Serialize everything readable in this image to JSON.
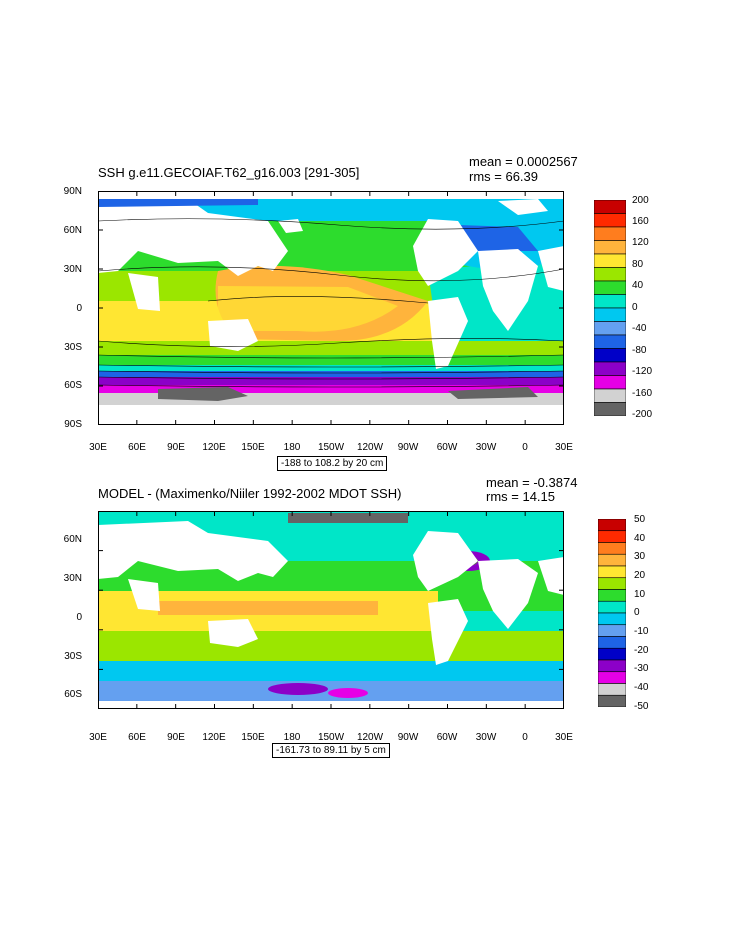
{
  "panel_top": {
    "title": "SSH g.e11.GECOIAF.T62_g16.003 [291-305]",
    "mean": "mean = 0.0002567",
    "rms": "rms = 66.39",
    "lat_labels": [
      "90N",
      "60N",
      "30N",
      "0",
      "30S",
      "60S",
      "90S"
    ],
    "lon_labels": [
      "30E",
      "60E",
      "90E",
      "120E",
      "150E",
      "180",
      "150W",
      "120W",
      "90W",
      "60W",
      "30W",
      "0",
      "30E"
    ],
    "info": "-188 to 108.2 by 20 cm",
    "colorbar_labels": [
      "200",
      "160",
      "120",
      "80",
      "40",
      "0",
      "-40",
      "-80",
      "-120",
      "-160",
      "-200"
    ],
    "colorbar_colors": [
      "#c80000",
      "#ff2a00",
      "#ff7d1e",
      "#ffb43c",
      "#ffe632",
      "#9be600",
      "#2ddc2d",
      "#00e6c8",
      "#00c8f0",
      "#64a0f0",
      "#1e64e6",
      "#0000c8",
      "#8c00c8",
      "#e600e6",
      "#d2d2d2",
      "#646464"
    ]
  },
  "panel_bottom": {
    "title": "MODEL - (Maximenko/Niiler 1992-2002 MDOT SSH)",
    "mean": "mean = -0.3874",
    "rms": "rms = 14.15",
    "lat_labels": [
      "60N",
      "30N",
      "0",
      "30S",
      "60S"
    ],
    "lon_labels": [
      "30E",
      "60E",
      "90E",
      "120E",
      "150E",
      "180",
      "150W",
      "120W",
      "90W",
      "60W",
      "30W",
      "0",
      "30E"
    ],
    "info": "-161.73 to 89.11 by 5 cm",
    "colorbar_labels": [
      "50",
      "40",
      "30",
      "20",
      "10",
      "0",
      "-10",
      "-20",
      "-30",
      "-40",
      "-50"
    ],
    "colorbar_colors": [
      "#c80000",
      "#ff2a00",
      "#ff7d1e",
      "#ffb43c",
      "#ffe632",
      "#9be600",
      "#2ddc2d",
      "#00e6c8",
      "#00c8f0",
      "#64a0f0",
      "#1e64e6",
      "#0000c8",
      "#8c00c8",
      "#e600e6",
      "#d2d2d2",
      "#646464"
    ]
  }
}
